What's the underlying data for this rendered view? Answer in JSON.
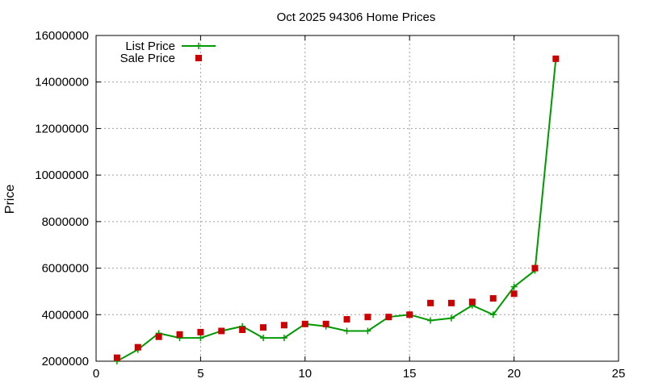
{
  "chart_data": {
    "type": "line",
    "title": "Oct 2025 94306 Home Prices",
    "xlabel": "",
    "ylabel": "Price",
    "xlim": [
      0,
      25
    ],
    "ylim": [
      2000000,
      16000000
    ],
    "xticks": [
      0,
      5,
      10,
      15,
      20,
      25
    ],
    "yticks": [
      2000000,
      4000000,
      6000000,
      8000000,
      10000000,
      12000000,
      14000000,
      16000000
    ],
    "grid": true,
    "legend_position": "top-left",
    "series": [
      {
        "name": "List Price",
        "kind": "line-points",
        "marker": "plus",
        "color": "#009900",
        "points": [
          [
            1,
            2000000
          ],
          [
            2,
            2500000
          ],
          [
            3,
            3200000
          ],
          [
            4,
            3000000
          ],
          [
            5,
            3000000
          ],
          [
            6,
            3300000
          ],
          [
            7,
            3500000
          ],
          [
            8,
            3000000
          ],
          [
            9,
            3000000
          ],
          [
            10,
            3600000
          ],
          [
            11,
            3500000
          ],
          [
            12,
            3300000
          ],
          [
            13,
            3300000
          ],
          [
            14,
            3900000
          ],
          [
            15,
            4000000
          ],
          [
            16,
            3750000
          ],
          [
            17,
            3850000
          ],
          [
            18,
            4400000
          ],
          [
            19,
            4000000
          ],
          [
            20,
            5200000
          ],
          [
            21,
            5900000
          ],
          [
            22,
            15000000
          ]
        ]
      },
      {
        "name": "Sale Price",
        "kind": "points",
        "marker": "square",
        "color": "#cc0000",
        "points": [
          [
            1,
            2150000
          ],
          [
            2,
            2600000
          ],
          [
            3,
            3050000
          ],
          [
            4,
            3150000
          ],
          [
            5,
            3250000
          ],
          [
            6,
            3300000
          ],
          [
            7,
            3350000
          ],
          [
            8,
            3450000
          ],
          [
            9,
            3550000
          ],
          [
            10,
            3600000
          ],
          [
            11,
            3600000
          ],
          [
            12,
            3800000
          ],
          [
            13,
            3900000
          ],
          [
            14,
            3900000
          ],
          [
            15,
            4000000
          ],
          [
            16,
            4500000
          ],
          [
            17,
            4500000
          ],
          [
            18,
            4550000
          ],
          [
            19,
            4700000
          ],
          [
            20,
            4900000
          ],
          [
            21,
            6000000
          ],
          [
            22,
            15000000
          ]
        ]
      }
    ]
  }
}
